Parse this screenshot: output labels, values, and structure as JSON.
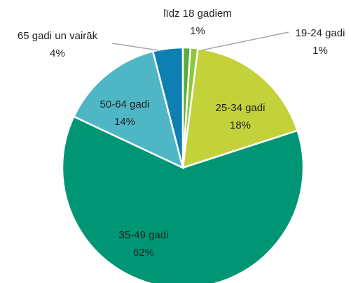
{
  "chart_data": {
    "type": "pie",
    "categories": [
      "līdz 18 gadiem",
      "19-24 gadi",
      "25-34 gadi",
      "35-49 gadi",
      "50-64 gadi",
      "65 gadi un vairāk"
    ],
    "values": [
      1,
      1,
      18,
      62,
      14,
      4
    ],
    "value_labels": [
      "1%",
      "1%",
      "18%",
      "62%",
      "14%",
      "4%"
    ],
    "colors": [
      "#5aab3c",
      "#8dc63f",
      "#c3d23b",
      "#009675",
      "#4fb6c6",
      "#0e7fb2"
    ]
  }
}
